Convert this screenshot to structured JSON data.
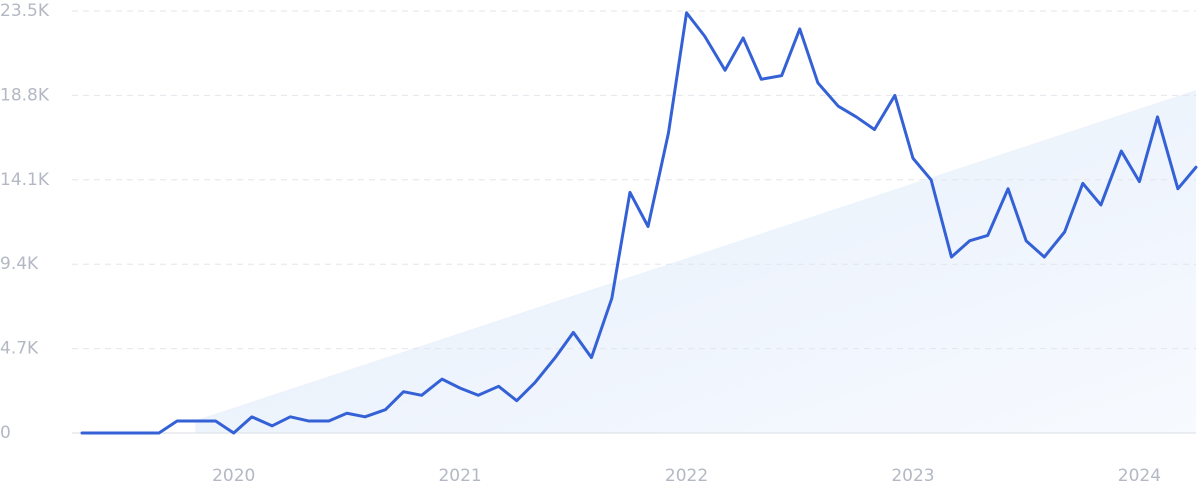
{
  "chart_data": {
    "type": "line",
    "x": [
      2019.33,
      2019.42,
      2019.5,
      2019.58,
      2019.67,
      2019.75,
      2019.83,
      2019.92,
      2020,
      2020.08,
      2020.17,
      2020.25,
      2020.33,
      2020.42,
      2020.5,
      2020.58,
      2020.67,
      2020.75,
      2020.83,
      2020.92,
      2021,
      2021.08,
      2021.17,
      2021.25,
      2021.33,
      2021.42,
      2021.5,
      2021.58,
      2021.67,
      2021.75,
      2021.83,
      2021.92,
      2022,
      2022.08,
      2022.17,
      2022.25,
      2022.33,
      2022.42,
      2022.5,
      2022.58,
      2022.67,
      2022.75,
      2022.83,
      2022.92,
      2023,
      2023.08,
      2023.17,
      2023.25,
      2023.33,
      2023.42,
      2023.5,
      2023.58,
      2023.67,
      2023.75,
      2023.83,
      2023.92,
      2024,
      2024.08,
      2024.17,
      2024.25
    ],
    "series": [
      {
        "color": "#3461d6",
        "values": [
          0,
          0,
          0,
          0,
          0,
          670,
          670,
          670,
          0,
          900,
          400,
          900,
          670,
          670,
          1100,
          900,
          1300,
          2300,
          2100,
          3000,
          2500,
          2100,
          2600,
          1800,
          2800,
          4200,
          5600,
          4200,
          7500,
          13400,
          11500,
          16700,
          23400,
          22100,
          20200,
          22000,
          19700,
          19900,
          22500,
          19500,
          18200,
          17600,
          16900,
          18800,
          15300,
          14100,
          9800,
          10700,
          11000,
          13600,
          10700,
          9800,
          11200,
          13900,
          12700,
          15700,
          14000,
          17600,
          13600,
          14800
        ]
      }
    ],
    "trend": {
      "x": [
        2019.83,
        2024.25
      ],
      "values": [
        700,
        19100
      ],
      "color": "#e6effb"
    },
    "xlim": [
      2019.33,
      2024.25
    ],
    "xticks": [
      2020,
      2021,
      2022,
      2023,
      2024
    ],
    "ylim": [
      0,
      23500
    ],
    "yticks": [
      0,
      {
        "value": 4700,
        "label": "4.7K"
      },
      {
        "value": 9400,
        "label": "9.4K"
      },
      {
        "value": 14100,
        "label": "14.1K"
      },
      {
        "value": 18800,
        "label": "18.8K"
      },
      {
        "value": 23500,
        "label": "23.5K"
      }
    ],
    "grid": true
  }
}
